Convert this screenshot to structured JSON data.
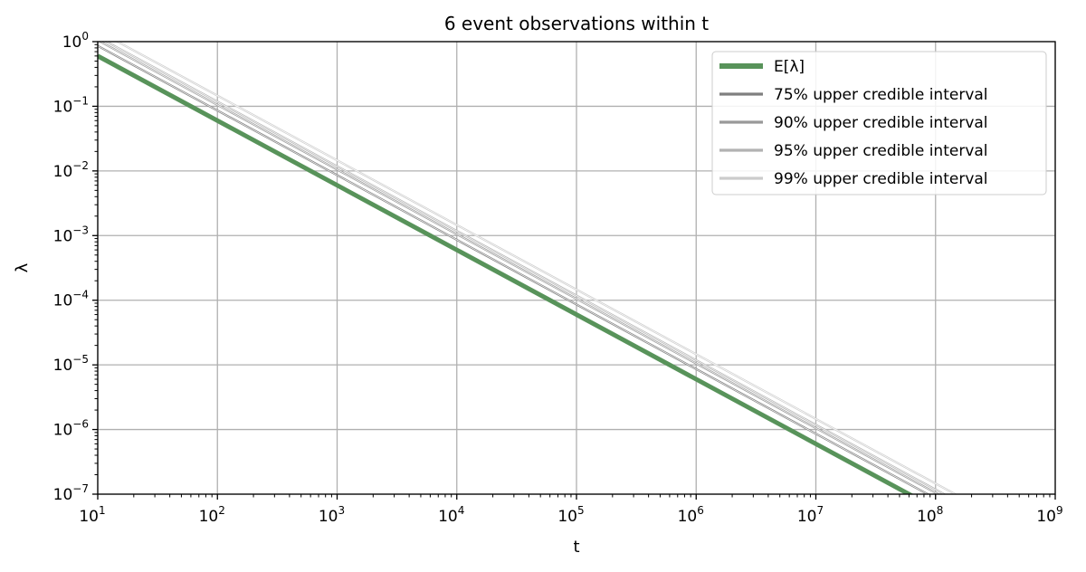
{
  "chart_data": {
    "type": "line",
    "title": "6 event observations within t",
    "xlabel": "t",
    "ylabel": "λ",
    "xscale": "log",
    "yscale": "log",
    "xlim": [
      10,
      1000000000
    ],
    "ylim": [
      1e-07,
      1
    ],
    "grid": true,
    "legend_position": "top-right",
    "xticks": [
      {
        "base": "10",
        "exp": "1"
      },
      {
        "base": "10",
        "exp": "2"
      },
      {
        "base": "10",
        "exp": "3"
      },
      {
        "base": "10",
        "exp": "4"
      },
      {
        "base": "10",
        "exp": "5"
      },
      {
        "base": "10",
        "exp": "6"
      },
      {
        "base": "10",
        "exp": "7"
      },
      {
        "base": "10",
        "exp": "8"
      },
      {
        "base": "10",
        "exp": "9"
      }
    ],
    "yticks": [
      {
        "base": "10",
        "exp": "0"
      },
      {
        "base": "10",
        "exp": "−1"
      },
      {
        "base": "10",
        "exp": "−2"
      },
      {
        "base": "10",
        "exp": "−3"
      },
      {
        "base": "10",
        "exp": "−4"
      },
      {
        "base": "10",
        "exp": "−5"
      },
      {
        "base": "10",
        "exp": "−6"
      },
      {
        "base": "10",
        "exp": "−7"
      }
    ],
    "series": [
      {
        "name": "E[λ]",
        "formula": "λ = k / t",
        "k": 6.0,
        "color": "#58935a",
        "width": 5
      },
      {
        "name": "75% upper credible interval",
        "formula": "λ = k / t",
        "k": 8.6,
        "color": "#7f7f7f",
        "width": 2.2
      },
      {
        "name": "90% upper credible interval",
        "formula": "λ = k / t",
        "k": 10.5,
        "color": "#999999",
        "width": 2.2
      },
      {
        "name": "95% upper credible interval",
        "formula": "λ = k / t",
        "k": 11.8,
        "color": "#b2b2b2",
        "width": 2.2
      },
      {
        "name": "99% upper credible interval",
        "formula": "λ = k / t",
        "k": 14.6,
        "color": "#cccccc",
        "width": 2.2
      }
    ]
  }
}
